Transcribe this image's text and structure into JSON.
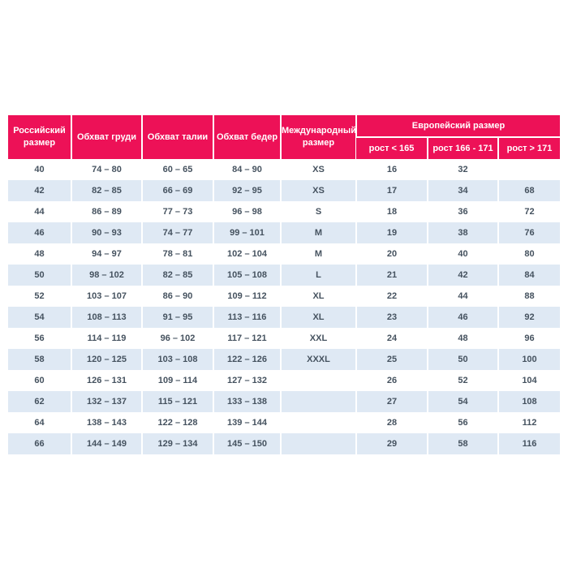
{
  "colors": {
    "header_bg": "#ed1157",
    "header_text": "#ffffff",
    "row_bg": "#ffffff",
    "alt_row_bg": "#dfe9f4",
    "cell_text": "#45525f",
    "separator": "#ffffff"
  },
  "table": {
    "headers": {
      "russian_size": "Российский размер",
      "chest": "Обхват груди",
      "waist": "Обхват талии",
      "hips": "Обхват бедер",
      "international_size": "Международный размер",
      "european_size": "Европейский размер",
      "height_lt_165": "рост < 165",
      "height_166_171": "рост 166 - 171",
      "height_gt_171": "рост > 171"
    },
    "rows": [
      [
        "40",
        "74 – 80",
        "60 – 65",
        "84 – 90",
        "XS",
        "16",
        "32",
        ""
      ],
      [
        "42",
        "82 – 85",
        "66 – 69",
        "92 – 95",
        "XS",
        "17",
        "34",
        "68"
      ],
      [
        "44",
        "86 – 89",
        "77 – 73",
        "96 – 98",
        "S",
        "18",
        "36",
        "72"
      ],
      [
        "46",
        "90 – 93",
        "74 – 77",
        "99 – 101",
        "M",
        "19",
        "38",
        "76"
      ],
      [
        "48",
        "94 – 97",
        "78 – 81",
        "102 – 104",
        "M",
        "20",
        "40",
        "80"
      ],
      [
        "50",
        "98 – 102",
        "82 – 85",
        "105 – 108",
        "L",
        "21",
        "42",
        "84"
      ],
      [
        "52",
        "103 – 107",
        "86 – 90",
        "109 – 112",
        "XL",
        "22",
        "44",
        "88"
      ],
      [
        "54",
        "108 – 113",
        "91 – 95",
        "113 – 116",
        "XL",
        "23",
        "46",
        "92"
      ],
      [
        "56",
        "114 – 119",
        "96 – 102",
        "117 – 121",
        "XXL",
        "24",
        "48",
        "96"
      ],
      [
        "58",
        "120 – 125",
        "103 – 108",
        "122 – 126",
        "XXXL",
        "25",
        "50",
        "100"
      ],
      [
        "60",
        "126 – 131",
        "109 – 114",
        "127 – 132",
        "",
        "26",
        "52",
        "104"
      ],
      [
        "62",
        "132 – 137",
        "115 – 121",
        "133 – 138",
        "",
        "27",
        "54",
        "108"
      ],
      [
        "64",
        "138 – 143",
        "122 – 128",
        "139 – 144",
        "",
        "28",
        "56",
        "112"
      ],
      [
        "66",
        "144 – 149",
        "129 – 134",
        "145 – 150",
        "",
        "29",
        "58",
        "116"
      ]
    ]
  }
}
